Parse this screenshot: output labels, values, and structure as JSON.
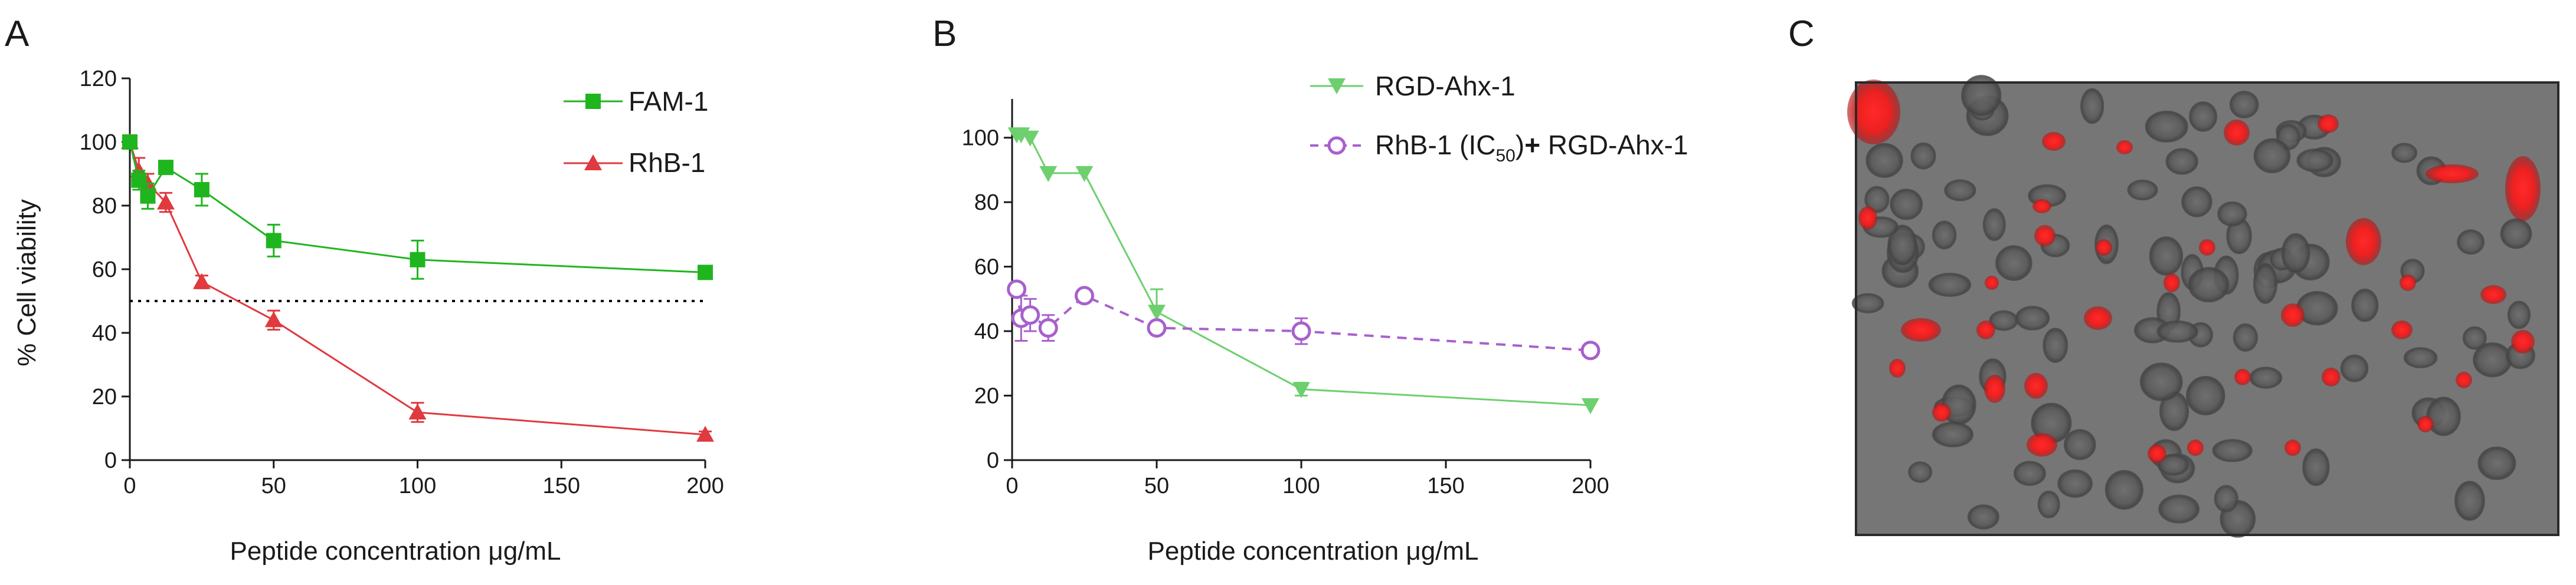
{
  "figure": {
    "panel_labels": [
      "A",
      "B",
      "C"
    ]
  },
  "colors": {
    "fam": "#1fb51f",
    "rhb": "#e0393e",
    "rgd_ahx": "#6ecf6e",
    "rhb_rgd": "#a860cc",
    "threshold": "#000000",
    "axis": "#1a1a1a"
  },
  "chart_data": [
    {
      "panel": "A",
      "type": "line",
      "xlabel_prefix": "Peptide concentration ",
      "xlabel_mu": "μ",
      "xlabel_suffix": "g/mL",
      "ylabel": "% Cell viability",
      "xlim": [
        0,
        200
      ],
      "ylim": [
        0,
        120
      ],
      "xticks": [
        0,
        50,
        100,
        150,
        200
      ],
      "yticks": [
        0,
        20,
        40,
        60,
        80,
        100,
        120
      ],
      "threshold": 50,
      "legend_position": "top-right",
      "series": [
        {
          "name": "FAM-1",
          "marker": "square",
          "line": "solid",
          "x": [
            0,
            3.125,
            6.25,
            12.5,
            25,
            50,
            100,
            200
          ],
          "y": [
            100,
            88,
            83,
            92,
            85,
            69,
            63,
            59
          ],
          "err": [
            0,
            3,
            4,
            1,
            5,
            5,
            6,
            1
          ]
        },
        {
          "name": "RhB-1",
          "marker": "triangle-up",
          "line": "solid",
          "x": [
            0,
            3.125,
            6.25,
            12.5,
            25,
            50,
            100,
            200
          ],
          "y": [
            100,
            91,
            87,
            81,
            56,
            44,
            15,
            8
          ],
          "err": [
            0,
            4,
            3,
            3,
            2,
            3,
            3,
            1
          ]
        }
      ]
    },
    {
      "panel": "B",
      "type": "line",
      "xlabel_prefix": "Peptide concentration ",
      "xlabel_mu": "μ",
      "xlabel_suffix": "g/mL",
      "ylabel": "",
      "xlim": [
        0,
        200
      ],
      "ylim": [
        0,
        110
      ],
      "xticks": [
        0,
        50,
        100,
        150,
        200
      ],
      "yticks": [
        0,
        20,
        40,
        60,
        80,
        100
      ],
      "legend_position": "top-right",
      "series": [
        {
          "name": "RGD-Ahx-1",
          "marker": "triangle-down",
          "line": "solid",
          "x": [
            1.5625,
            3.125,
            6.25,
            12.5,
            25,
            50,
            100,
            200
          ],
          "y": [
            101,
            101,
            100,
            89,
            89,
            46,
            22,
            17
          ],
          "err": [
            0,
            0,
            0,
            0,
            0,
            7,
            2,
            0
          ]
        },
        {
          "name_prefix": "RhB-1 (IC",
          "name_sub": "50",
          "name_mid": ")",
          "name_plus": "+",
          "name_suffix": " RGD-Ahx-1",
          "marker": "open-circle",
          "line": "dashed",
          "x": [
            1.5625,
            3.125,
            6.25,
            12.5,
            25,
            50,
            100,
            200
          ],
          "y": [
            53,
            44,
            45,
            41,
            51,
            41,
            40,
            34
          ],
          "err": [
            0,
            7,
            5,
            4,
            0,
            0,
            4,
            0
          ]
        }
      ]
    }
  ],
  "panel_c": {
    "description_label": "fluorescence-microscopy-image"
  }
}
